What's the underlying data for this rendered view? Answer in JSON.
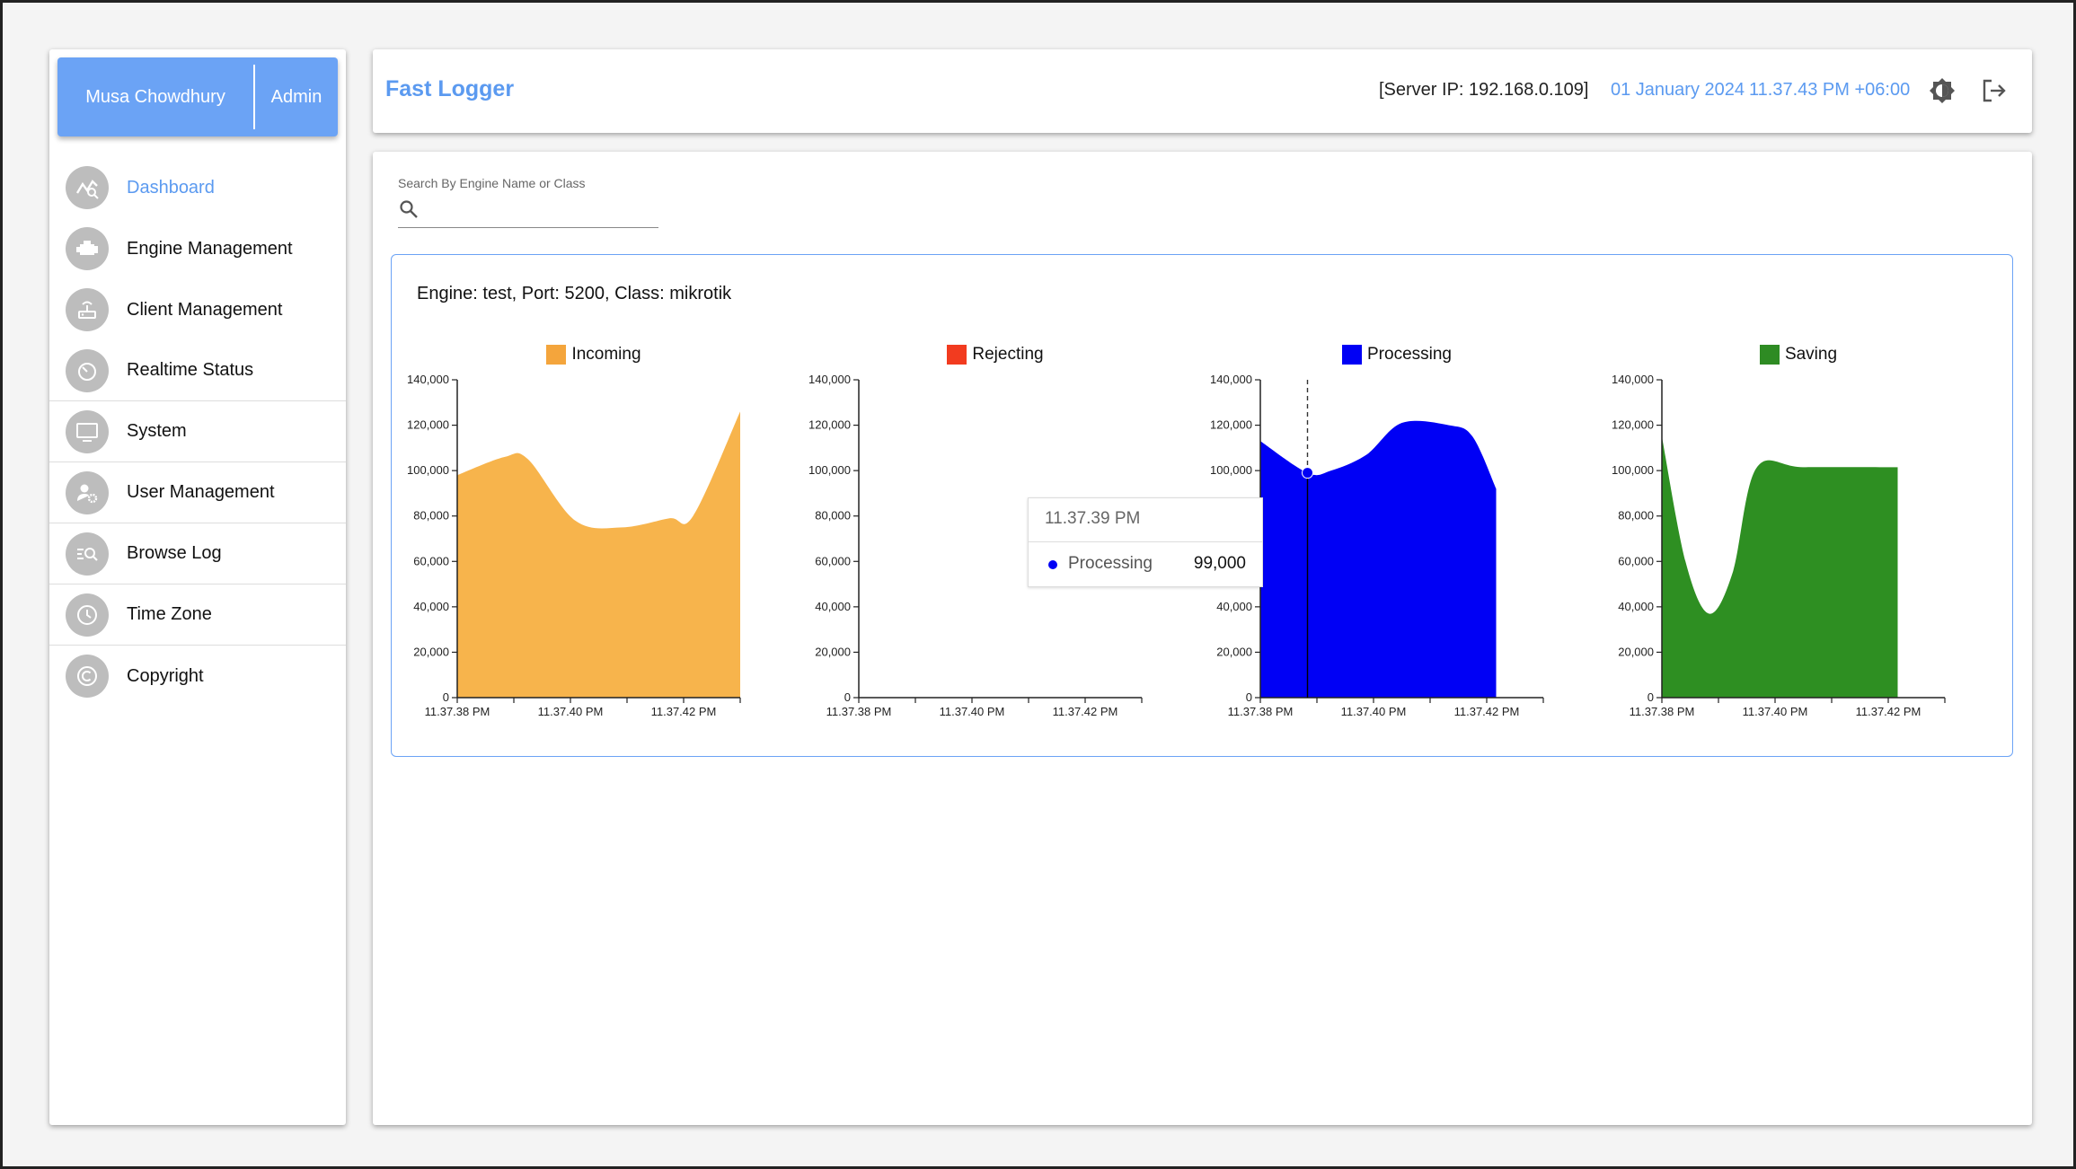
{
  "user": {
    "name": "Musa Chowdhury",
    "role": "Admin"
  },
  "nav": [
    {
      "label": "Dashboard",
      "icon": "dashboard-icon",
      "active": true
    },
    {
      "label": "Engine Management",
      "icon": "engine-icon"
    },
    {
      "label": "Client Management",
      "icon": "router-icon"
    },
    {
      "label": "Realtime Status",
      "icon": "timer-icon"
    },
    {
      "label": "System",
      "icon": "monitor-icon"
    },
    {
      "label": "User Management",
      "icon": "user-settings-icon"
    },
    {
      "label": "Browse Log",
      "icon": "search-list-icon"
    },
    {
      "label": "Time Zone",
      "icon": "clock-icon"
    },
    {
      "label": "Copyright",
      "icon": "copyright-icon"
    }
  ],
  "header": {
    "title": "Fast Logger",
    "server_ip": "[Server IP: 192.168.0.109]",
    "date": "01 January 2024",
    "time": "11.37.43 PM +06:00",
    "theme_icon": "brightness-icon",
    "logout_icon": "logout-icon"
  },
  "search": {
    "label": "Search By Engine Name or Class",
    "value": ""
  },
  "engine": {
    "title": "Engine: test, Port: 5200, Class: mikrotik"
  },
  "colors": {
    "accent": "#5b9af0",
    "incoming": "#f4a53c",
    "rejecting": "#f23b1f",
    "processing": "#0000f5",
    "saving": "#2e8b23"
  },
  "chart_data": [
    {
      "type": "area",
      "series": [
        {
          "name": "Incoming",
          "color": "#f7b44c",
          "points": [
            [
              0,
              98000
            ],
            [
              0.2,
              106000
            ],
            [
              0.3,
              105000
            ],
            [
              0.5,
              78000
            ],
            [
              0.7,
              75000
            ],
            [
              0.9,
              79000
            ],
            [
              1,
              80000
            ],
            [
              1.2,
              126000
            ]
          ]
        }
      ],
      "x_ticks": [
        "11.37.38 PM",
        "11.37.40 PM",
        "11.37.42 PM"
      ],
      "y_ticks": [
        "0",
        "20,000",
        "40,000",
        "60,000",
        "80,000",
        "100,000",
        "120,000",
        "140,000"
      ],
      "ylim": [
        0,
        140000
      ]
    },
    {
      "type": "area",
      "series": [
        {
          "name": "Rejecting",
          "color": "#f23b1f",
          "points": []
        }
      ],
      "x_ticks": [
        "11.37.38 PM",
        "11.37.40 PM",
        "11.37.42 PM"
      ],
      "y_ticks": [
        "0",
        "20,000",
        "40,000",
        "60,000",
        "80,000",
        "100,000",
        "120,000",
        "140,000"
      ],
      "ylim": [
        0,
        140000
      ]
    },
    {
      "type": "area",
      "series": [
        {
          "name": "Processing",
          "color": "#0000f5",
          "points": [
            [
              0,
              113000
            ],
            [
              0.2,
              99000
            ],
            [
              0.3,
              100000
            ],
            [
              0.45,
              107000
            ],
            [
              0.6,
              121000
            ],
            [
              0.8,
              120000
            ],
            [
              0.9,
              115000
            ],
            [
              1,
              92000
            ]
          ]
        }
      ],
      "x_ticks": [
        "11.37.38 PM",
        "11.37.40 PM",
        "11.37.42 PM"
      ],
      "y_ticks": [
        "0",
        "20,000",
        "40,000",
        "60,000",
        "80,000",
        "100,000",
        "120,000",
        "140,000"
      ],
      "ylim": [
        0,
        140000
      ],
      "tooltip": {
        "time": "11.37.39 PM",
        "series": "Processing",
        "value": "99,000"
      }
    },
    {
      "type": "area",
      "series": [
        {
          "name": "Saving",
          "color": "#2e8f22",
          "points": [
            [
              0,
              115000
            ],
            [
              0.1,
              60000
            ],
            [
              0.2,
              37000
            ],
            [
              0.3,
              55000
            ],
            [
              0.4,
              101000
            ],
            [
              0.6,
              101500
            ],
            [
              1,
              101500
            ]
          ]
        }
      ],
      "x_ticks": [
        "11.37.38 PM",
        "11.37.40 PM",
        "11.37.42 PM"
      ],
      "y_ticks": [
        "0",
        "20,000",
        "40,000",
        "60,000",
        "80,000",
        "100,000",
        "120,000",
        "140,000"
      ],
      "ylim": [
        0,
        140000
      ]
    }
  ]
}
